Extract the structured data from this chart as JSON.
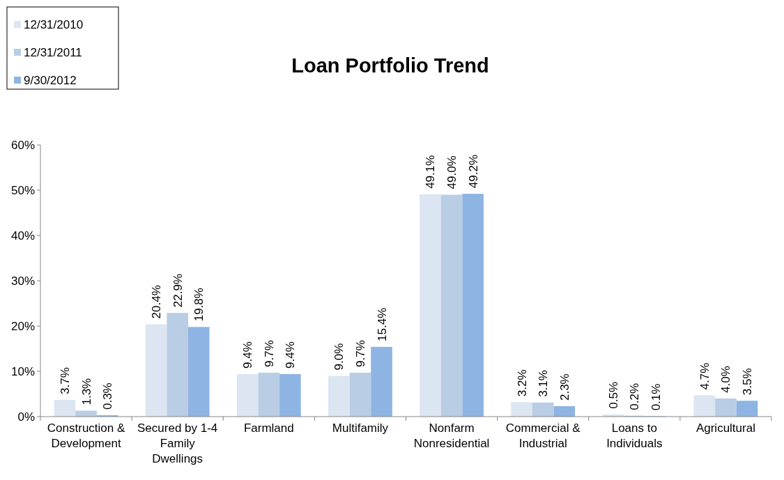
{
  "chart_data": {
    "type": "bar",
    "title": "Loan Portfolio Trend",
    "categories": [
      "Construction & Development",
      "Secured by 1-4 Family Dwellings",
      "Farmland",
      "Multifamily",
      "Nonfarm Nonresidential",
      "Commercial & Industrial",
      "Loans to Individuals",
      "Agricultural"
    ],
    "series": [
      {
        "name": "12/31/2010",
        "color": "#dce6f2",
        "values": [
          3.7,
          20.4,
          9.4,
          9.0,
          49.1,
          3.2,
          0.5,
          4.7
        ],
        "value_labels": [
          "3.7%",
          "20.4%",
          "9.4%",
          "9.0%",
          "49.1%",
          "3.2%",
          "0.5%",
          "4.7%"
        ]
      },
      {
        "name": "12/31/2011",
        "color": "#b9cde5",
        "values": [
          1.3,
          22.9,
          9.7,
          9.7,
          49.0,
          3.1,
          0.2,
          4.0
        ],
        "value_labels": [
          "1.3%",
          "22.9%",
          "9.7%",
          "9.7%",
          "49.0%",
          "3.1%",
          "0.2%",
          "4.0%"
        ]
      },
      {
        "name": "9/30/2012",
        "color": "#8eb4e3",
        "values": [
          0.3,
          19.8,
          9.4,
          15.4,
          49.2,
          2.3,
          0.1,
          3.5
        ],
        "value_labels": [
          "0.3%",
          "19.8%",
          "9.4%",
          "15.4%",
          "49.2%",
          "2.3%",
          "0.1%",
          "3.5%"
        ]
      }
    ],
    "ylim": [
      0,
      60
    ],
    "yticks": [
      {
        "value": 0,
        "label": "0%"
      },
      {
        "value": 10,
        "label": "10%"
      },
      {
        "value": 20,
        "label": "20%"
      },
      {
        "value": 30,
        "label": "30%"
      },
      {
        "value": 40,
        "label": "40%"
      },
      {
        "value": 50,
        "label": "50%"
      },
      {
        "value": 60,
        "label": "60%"
      }
    ],
    "legend": "top left",
    "grid": false
  }
}
